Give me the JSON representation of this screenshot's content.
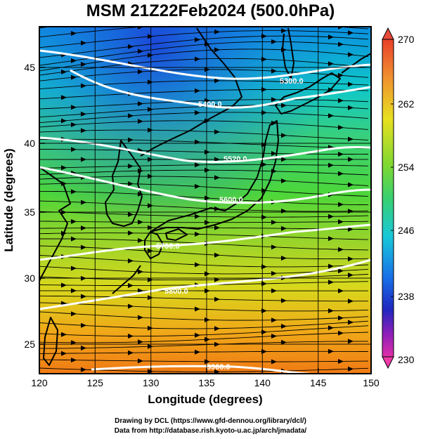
{
  "title": "MSM 21Z22Feb2024 (500.0hPa)",
  "x_axis": {
    "label": "Longitude (degrees)",
    "ticks": [
      "120",
      "125",
      "130",
      "135",
      "140",
      "145",
      "150"
    ],
    "range": [
      120,
      150
    ]
  },
  "y_axis": {
    "label": "Latitude  (degrees)",
    "ticks": [
      "25",
      "30",
      "35",
      "40",
      "45"
    ],
    "range": [
      22.4,
      47.6
    ]
  },
  "colorbar": {
    "ticks": [
      "270",
      "262",
      "254",
      "246",
      "238",
      "230"
    ],
    "range": [
      230,
      270
    ]
  },
  "contours": [
    {
      "label": "5400.0",
      "lat": 41.6
    },
    {
      "label": "5300.0",
      "lat": 44.4
    },
    {
      "label": "5520.0",
      "lat": 39.3
    },
    {
      "label": "5600.0",
      "lat": 35.6
    },
    {
      "label": "5700.0",
      "lat": 32.2
    },
    {
      "label": "5800.0",
      "lat": 28.9
    },
    {
      "label": "5900.0",
      "lat": 23.4
    }
  ],
  "credits": {
    "line1": "Drawing by DCL (https://www.gfd-dennou.org/library/dcl/)",
    "line2": "Data from http://database.rish.kyoto-u.ac.jp/arch/jmadata/"
  },
  "colors": {
    "frame": "#000000",
    "contour": "#ffffff",
    "coast": "#000000"
  }
}
